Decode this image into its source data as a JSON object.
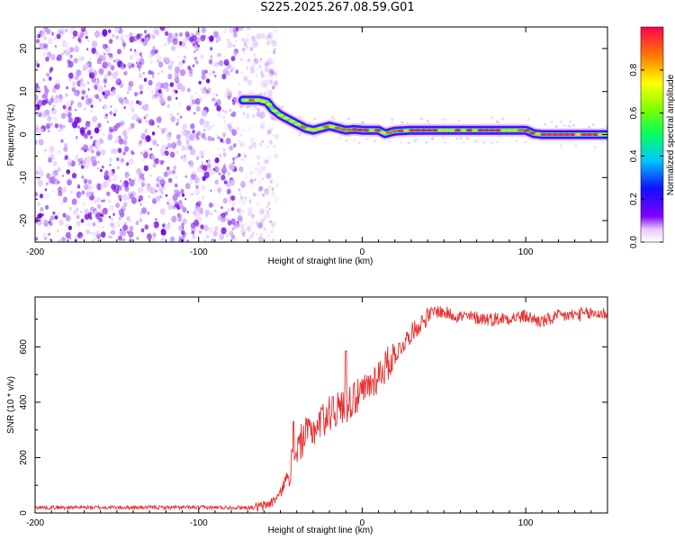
{
  "title": "S225.2025.267.08.59.G01",
  "colors": {
    "background": "#ffffff",
    "axis": "#000000",
    "snr_line": "#e83030",
    "scatter": "#8a2be2"
  },
  "chart_data": [
    {
      "type": "heatmap",
      "name": "spectrogram",
      "xlabel": "Height of straight line (km)",
      "ylabel": "Frequency (Hz)",
      "xlim": [
        -200,
        150
      ],
      "ylim": [
        -25,
        25
      ],
      "xticks": [
        -200,
        -100,
        0,
        100
      ],
      "yticks": [
        -20,
        -10,
        0,
        10,
        20
      ],
      "xtick_labels": [
        "-200",
        "-100",
        "0",
        "100"
      ],
      "ytick_labels": [
        "-20",
        "-10",
        "0",
        "10",
        "20"
      ],
      "noise_region_x": [
        -200,
        -60
      ],
      "ridge": {
        "x": [
          -73,
          -68,
          -63,
          -58,
          -55,
          -50,
          -45,
          -40,
          -35,
          -30,
          -25,
          -20,
          -15,
          -10,
          -5,
          0,
          5,
          10,
          14,
          20,
          30,
          40,
          60,
          80,
          95,
          100,
          105,
          110,
          130,
          150
        ],
        "y": [
          8,
          8,
          8,
          7.5,
          6,
          4.5,
          3.5,
          2.5,
          1.5,
          1,
          1.5,
          2,
          1.5,
          1,
          1.2,
          1,
          1,
          1,
          0.2,
          0.8,
          1,
          1,
          1,
          1,
          1,
          1,
          0.2,
          0,
          0,
          0
        ]
      },
      "colorbar": {
        "label": "Normalized spectral amplitude",
        "range": [
          0,
          1
        ],
        "ticks": [
          0.0,
          0.2,
          0.4,
          0.6,
          0.8
        ],
        "tick_labels": [
          "0.0",
          "0.2",
          "0.4",
          "0.6",
          "0.8"
        ]
      }
    },
    {
      "type": "line",
      "name": "snr",
      "xlabel": "Height of straight line (km)",
      "ylabel": "SNR (10 * v/v)",
      "xlim": [
        -200,
        150
      ],
      "ylim": [
        0,
        780
      ],
      "xticks": [
        -200,
        -100,
        0,
        100
      ],
      "yticks": [
        0,
        200,
        400,
        600
      ],
      "xtick_labels": [
        "-200",
        "-100",
        "0",
        "100"
      ],
      "ytick_labels": [
        "0",
        "200",
        "400",
        "600"
      ],
      "trend": {
        "x": [
          -200,
          -65,
          -60,
          -55,
          -50,
          -45,
          -40,
          -35,
          -30,
          -20,
          -10,
          0,
          10,
          20,
          30,
          40,
          45,
          60,
          80,
          100,
          110,
          120,
          140,
          150
        ],
        "y": [
          20,
          20,
          25,
          40,
          70,
          150,
          230,
          280,
          300,
          360,
          390,
          430,
          500,
          570,
          650,
          710,
          730,
          710,
          700,
          710,
          690,
          710,
          720,
          720
        ]
      },
      "spikes": [
        {
          "x": -42,
          "y": 330
        },
        {
          "x": -33,
          "y": 340
        },
        {
          "x": -25,
          "y": 380
        },
        {
          "x": -18,
          "y": 420
        },
        {
          "x": -10,
          "y": 585
        },
        {
          "x": -5,
          "y": 470
        }
      ]
    }
  ]
}
